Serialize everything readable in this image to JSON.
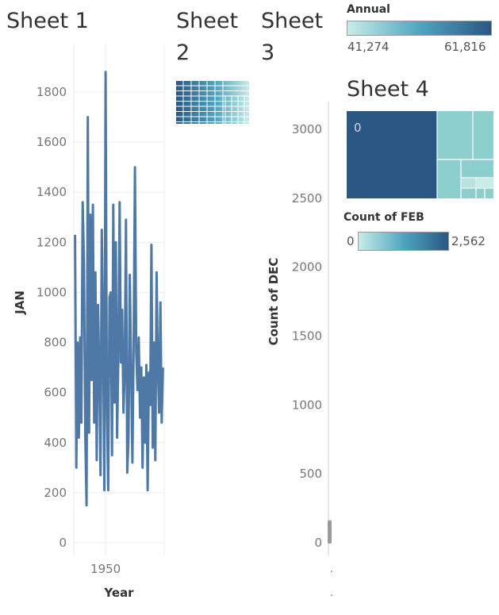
{
  "sheets": {
    "sheet1": {
      "title": "Sheet 1"
    },
    "sheet2": {
      "title": "Sheet 2"
    },
    "sheet3": {
      "title": "Sheet 3"
    },
    "sheet4": {
      "title": "Sheet 4"
    }
  },
  "colors": {
    "line": "#4e79a7",
    "grad_low": "#c9ece7",
    "grad_mid": "#4fa6c0",
    "grad_high": "#2a5783",
    "grid": "#eeeeee",
    "axis": "#cccccc"
  },
  "legends": {
    "annual": {
      "title": "Annual",
      "min_label": "41,274",
      "max_label": "61,816"
    },
    "count_feb": {
      "title": "Count of FEB",
      "min_label": "0",
      "max_label": "2,562"
    }
  },
  "chart_data": [
    {
      "id": "sheet1",
      "type": "line",
      "xlabel": "Year",
      "ylabel": "JAN",
      "xlim": [
        1925,
        1996
      ],
      "ylim": [
        0,
        1900
      ],
      "x_ticks": [
        1950
      ],
      "y_ticks": [
        0,
        200,
        400,
        600,
        800,
        1000,
        1200,
        1400,
        1600,
        1800
      ],
      "series": [
        {
          "x": [
            1926,
            1927,
            1928,
            1929,
            1930,
            1931,
            1932,
            1933,
            1934,
            1935,
            1936,
            1937,
            1938,
            1939,
            1940,
            1941,
            1942,
            1943,
            1944,
            1945,
            1946,
            1947,
            1948,
            1949,
            1950,
            1951,
            1952,
            1953,
            1954,
            1955,
            1956,
            1957,
            1958,
            1959,
            1960,
            1961,
            1962,
            1963,
            1964,
            1965,
            1966,
            1967,
            1968,
            1969,
            1970,
            1971,
            1972,
            1973,
            1974,
            1975,
            1976,
            1977,
            1978,
            1979,
            1980,
            1981,
            1982,
            1983,
            1984,
            1985,
            1986,
            1987,
            1988,
            1989,
            1990,
            1991,
            1992,
            1993,
            1994,
            1995
          ],
          "y": [
            1230,
            300,
            800,
            420,
            820,
            480,
            1360,
            1120,
            430,
            150,
            1700,
            440,
            1310,
            650,
            1350,
            480,
            1080,
            330,
            950,
            700,
            270,
            1250,
            830,
            210,
            1880,
            560,
            210,
            980,
            1000,
            350,
            1350,
            560,
            1200,
            420,
            740,
            1360,
            720,
            930,
            520,
            680,
            1290,
            280,
            420,
            1070,
            680,
            320,
            810,
            1500,
            760,
            610,
            820,
            500,
            700,
            300,
            660,
            400,
            710,
            210,
            680,
            550,
            1190,
            380,
            800,
            330,
            1080,
            700,
            520,
            960,
            480,
            700
          ]
        }
      ]
    },
    {
      "id": "sheet3",
      "type": "bar",
      "xlabel": "",
      "ylabel": "Count of DEC",
      "ylim": [
        0,
        3200
      ],
      "y_ticks": [
        0,
        500,
        1000,
        1500,
        2000,
        2500,
        3000
      ],
      "values": [
        170
      ]
    }
  ]
}
